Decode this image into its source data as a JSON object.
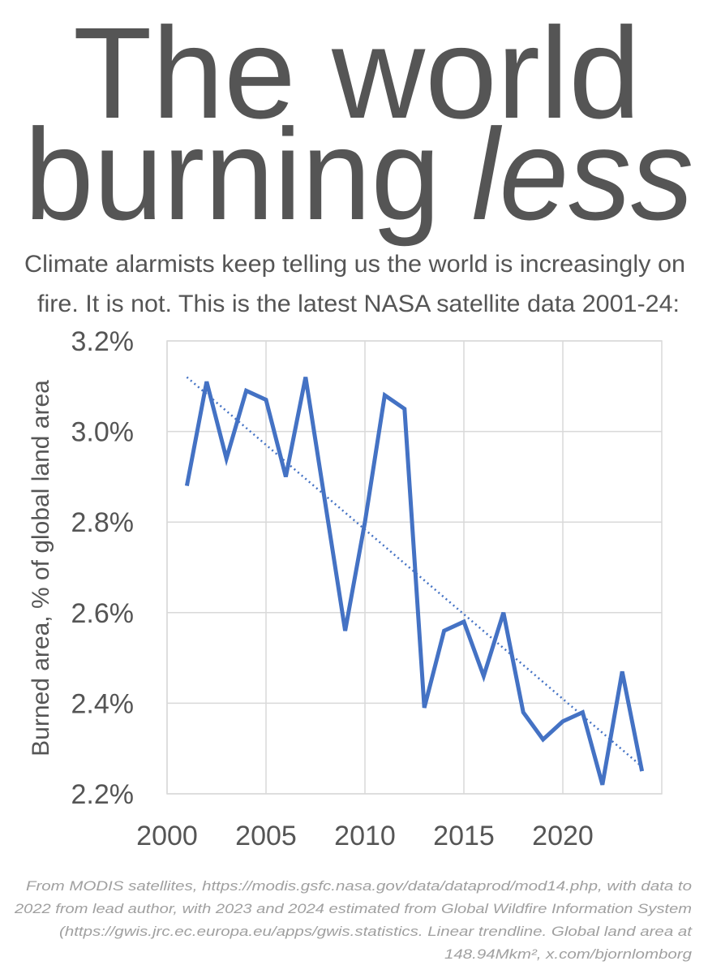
{
  "chart_data": {
    "type": "line",
    "title": "The world",
    "title_2": "burning",
    "title_emphasis": "less",
    "subtitle": [
      "Climate alarmists keep telling us the world is increasingly on",
      "fire. It is not. This is the latest NASA satellite data 2001-24:"
    ],
    "y_label": "Burned area, % of global land area",
    "x": [
      2001,
      2002,
      2003,
      2004,
      2005,
      2006,
      2007,
      2008,
      2009,
      2010,
      2011,
      2012,
      2013,
      2014,
      2015,
      2016,
      2017,
      2018,
      2019,
      2020,
      2021,
      2022,
      2023,
      2024
    ],
    "values": [
      2.88,
      3.11,
      2.94,
      3.09,
      3.07,
      2.9,
      3.12,
      2.84,
      2.56,
      2.8,
      3.08,
      3.05,
      2.39,
      2.56,
      2.58,
      2.46,
      2.6,
      2.38,
      2.32,
      2.36,
      2.38,
      2.22,
      2.47,
      2.25
    ],
    "color": "#4472c4",
    "trendline": {
      "x": [
        2001,
        2024
      ],
      "values": [
        3.12,
        2.26
      ]
    },
    "xlim": [
      2000,
      2025
    ],
    "xticks": [
      2000,
      2005,
      2010,
      2015,
      2020
    ],
    "ylim": [
      2.2,
      3.2
    ],
    "yticks": [
      {
        "value": 2.2,
        "label": "2.2%"
      },
      {
        "value": 2.4,
        "label": "2.4%"
      },
      {
        "value": 2.6,
        "label": "2.6%"
      },
      {
        "value": 2.8,
        "label": "2.8%"
      },
      {
        "value": 3.0,
        "label": "3.0%"
      },
      {
        "value": 3.2,
        "label": "3.2%"
      }
    ],
    "grid": true,
    "footnote": [
      "From MODIS satellites, https://modis.gsfc.nasa.gov/data/dataprod/mod14.php, with data to",
      "2022 from lead author, with 2023 and 2024 estimated from Global Wildfire Information System",
      "(https://gwis.jrc.ec.europa.eu/apps/gwis.statistics. Linear trendline. Global land area at",
      "148.94Mkm², x.com/bjornlomborg"
    ]
  }
}
